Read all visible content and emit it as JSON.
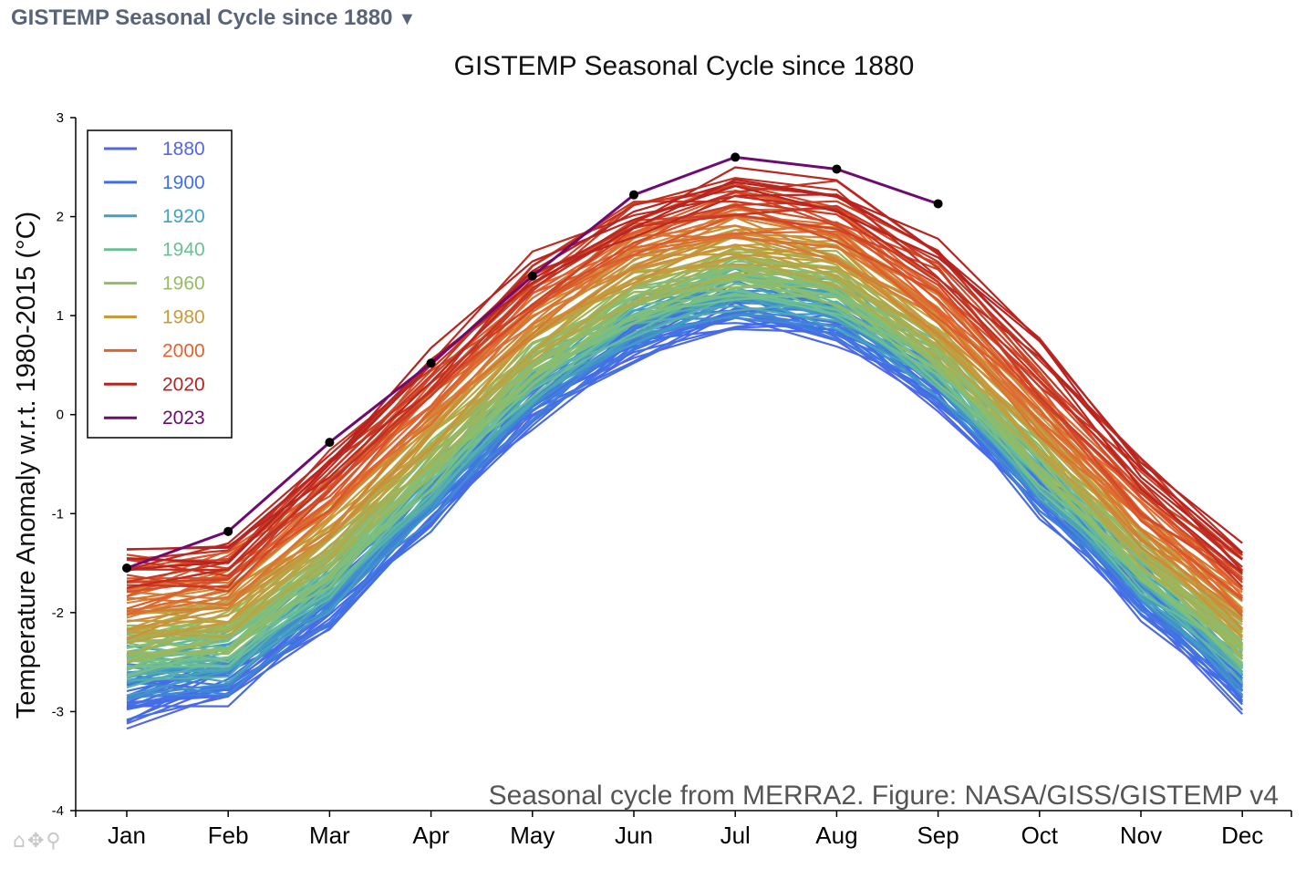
{
  "header": {
    "title": "GISTEMP Seasonal Cycle since 1880",
    "dropdown_icon": "triangle-down-icon"
  },
  "toolbar": {
    "icons": [
      "home-icon",
      "pan-icon",
      "zoom-icon"
    ]
  },
  "chart_data": {
    "type": "line",
    "title": "GISTEMP Seasonal Cycle since 1880",
    "xlabel": "",
    "ylabel": "Temperature Anomaly w.r.t. 1980-2015 (°C)",
    "annotation": "Seasonal cycle from MERRA2. Figure: NASA/GISS/GISTEMP v4",
    "categories": [
      "Jan",
      "Feb",
      "Mar",
      "Apr",
      "May",
      "Jun",
      "Jul",
      "Aug",
      "Sep",
      "Oct",
      "Nov",
      "Dec"
    ],
    "ylim": [
      -4,
      3
    ],
    "yticks": [
      3,
      2,
      1,
      0,
      -1,
      -2,
      -3,
      -4
    ],
    "grid": false,
    "legend_position": "top-left",
    "legend": [
      {
        "label": "1880",
        "color": "#5565e8"
      },
      {
        "label": "1900",
        "color": "#3f6fe6"
      },
      {
        "label": "1920",
        "color": "#42a0c0"
      },
      {
        "label": "1940",
        "color": "#6cbf95"
      },
      {
        "label": "1960",
        "color": "#93bc63"
      },
      {
        "label": "1980",
        "color": "#c79b3a"
      },
      {
        "label": "2000",
        "color": "#e2622f"
      },
      {
        "label": "2020",
        "color": "#b8231f"
      },
      {
        "label": "2023",
        "color": "#6e0a72"
      }
    ],
    "series": [
      {
        "name": "1880",
        "color": "#5565e8",
        "values": [
          -2.95,
          -2.7,
          -1.95,
          -0.95,
          0.05,
          0.75,
          1.05,
          0.9,
          0.25,
          -0.85,
          -1.85,
          -2.8
        ]
      },
      {
        "name": "1900",
        "color": "#3f6fe6",
        "values": [
          -2.85,
          -2.7,
          -1.95,
          -0.95,
          0.1,
          0.78,
          1.1,
          0.95,
          0.3,
          -0.8,
          -1.82,
          -2.75
        ]
      },
      {
        "name": "1920",
        "color": "#42a0c0",
        "values": [
          -2.6,
          -2.5,
          -1.75,
          -0.75,
          0.3,
          0.95,
          1.25,
          1.1,
          0.42,
          -0.65,
          -1.65,
          -2.55
        ]
      },
      {
        "name": "1940",
        "color": "#6cbf95",
        "values": [
          -2.45,
          -2.35,
          -1.6,
          -0.6,
          0.42,
          1.05,
          1.35,
          1.2,
          0.5,
          -0.55,
          -1.55,
          -2.4
        ]
      },
      {
        "name": "1960",
        "color": "#93bc63",
        "values": [
          -2.35,
          -2.2,
          -1.45,
          -0.45,
          0.55,
          1.2,
          1.5,
          1.35,
          0.62,
          -0.42,
          -1.42,
          -2.3
        ]
      },
      {
        "name": "1980",
        "color": "#c79b3a",
        "values": [
          -2.1,
          -1.95,
          -1.15,
          -0.15,
          0.85,
          1.5,
          1.78,
          1.62,
          0.92,
          -0.15,
          -1.2,
          -2.05
        ]
      },
      {
        "name": "2000",
        "color": "#e2622f",
        "values": [
          -1.8,
          -1.6,
          -0.8,
          0.2,
          1.15,
          1.8,
          2.05,
          1.9,
          1.15,
          0.1,
          -0.95,
          -1.8
        ]
      },
      {
        "name": "2020",
        "color": "#b8231f",
        "values": [
          -1.45,
          -1.5,
          -0.5,
          0.5,
          1.45,
          2.05,
          2.35,
          2.2,
          1.65,
          0.6,
          -0.55,
          -1.4
        ]
      },
      {
        "name": "2023",
        "color": "#6e0a72",
        "values": [
          -1.55,
          -1.18,
          -0.28,
          0.52,
          1.4,
          2.22,
          2.6,
          2.48,
          2.13,
          null,
          null,
          null
        ]
      }
    ]
  }
}
